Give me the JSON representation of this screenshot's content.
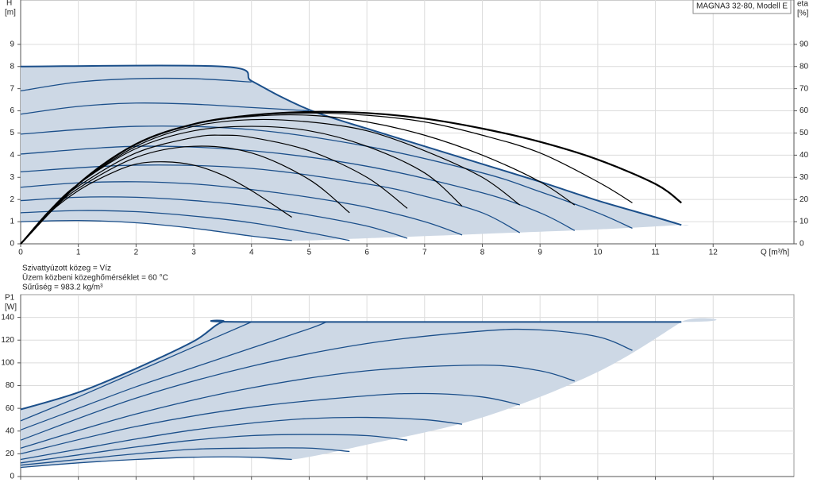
{
  "chart_data": [
    {
      "type": "line",
      "title": "MAGNA3 32-80, Modell E",
      "x_label": "Q [m³/h]",
      "y_label": [
        "H",
        "[m]"
      ],
      "y2_label": [
        "eta",
        "[%]"
      ],
      "notes": [
        "Szivattyúzott közeg = Víz",
        "Üzem közbeni közeghőmérséklet = 60 °C",
        "Sűrűség = 983.2 kg/m³"
      ],
      "xlim": [
        0,
        13.4
      ],
      "ylim": [
        0,
        11
      ],
      "y2lim": [
        0,
        110
      ],
      "xticks": [
        0,
        1,
        2,
        3,
        4,
        5,
        6,
        7,
        8,
        9,
        10,
        11,
        12
      ],
      "yticks": [
        0,
        1,
        2,
        3,
        4,
        5,
        6,
        7,
        8,
        9
      ],
      "y2ticks": [
        0,
        10,
        20,
        30,
        40,
        50,
        60,
        70,
        80,
        90
      ],
      "grid": true,
      "fill": {
        "color": "#cdd8e5",
        "x": [
          11.45,
          10,
          8,
          6,
          4.7,
          4,
          3,
          2,
          1,
          0
        ],
        "values": [
          0.85,
          0.65,
          0.45,
          0.25,
          0.15,
          0.35,
          0.7,
          0.95,
          1.05,
          1.0
        ]
      },
      "series": [
        {
          "color": "#1b4f8a",
          "width": 2,
          "x": [
            0,
            3.5,
            4,
            4.5,
            5,
            5.5,
            6,
            7,
            8,
            9,
            10,
            11,
            11.45
          ],
          "values": [
            8,
            8,
            7.35,
            6.65,
            6.05,
            5.6,
            5.2,
            4.4,
            3.6,
            2.8,
            1.95,
            1.2,
            0.85
          ]
        },
        {
          "color": "#1b4f8a",
          "width": 1.3,
          "x": [
            0,
            1,
            2,
            3,
            4,
            4.7
          ],
          "values": [
            1.0,
            1.05,
            0.95,
            0.7,
            0.35,
            0.15
          ]
        },
        {
          "color": "#1b4f8a",
          "width": 1.3,
          "x": [
            0,
            1,
            2,
            3,
            4,
            5,
            5.7
          ],
          "values": [
            1.4,
            1.5,
            1.45,
            1.25,
            0.95,
            0.5,
            0.15
          ]
        },
        {
          "color": "#1b4f8a",
          "width": 1.3,
          "x": [
            0,
            1,
            2,
            3,
            4,
            5,
            6,
            6.7
          ],
          "values": [
            1.95,
            2.1,
            2.1,
            1.95,
            1.7,
            1.3,
            0.8,
            0.25
          ]
        },
        {
          "color": "#1b4f8a",
          "width": 1.3,
          "x": [
            0,
            1,
            2,
            3,
            4,
            5,
            6,
            7,
            7.65
          ],
          "values": [
            2.55,
            2.75,
            2.8,
            2.7,
            2.45,
            2.1,
            1.65,
            1.0,
            0.4
          ]
        },
        {
          "color": "#1b4f8a",
          "width": 1.3,
          "x": [
            0,
            2,
            4,
            6,
            7,
            8,
            8.65
          ],
          "values": [
            3.25,
            3.55,
            3.4,
            2.7,
            2.15,
            1.4,
            0.5
          ]
        },
        {
          "color": "#1b4f8a",
          "width": 1.3,
          "x": [
            0,
            2,
            4,
            6,
            8,
            9,
            9.6
          ],
          "values": [
            4.05,
            4.4,
            4.2,
            3.5,
            2.3,
            1.4,
            0.6
          ]
        },
        {
          "color": "#1b4f8a",
          "width": 1.3,
          "x": [
            0,
            2,
            4,
            6,
            8,
            9,
            10,
            10.6
          ],
          "values": [
            4.95,
            5.3,
            5.15,
            4.4,
            3.2,
            2.35,
            1.4,
            0.7
          ]
        },
        {
          "color": "#1b4f8a",
          "width": 1.3,
          "x": [
            0,
            1,
            2,
            3,
            4,
            5
          ],
          "values": [
            5.85,
            6.2,
            6.35,
            6.3,
            6.15,
            6.0
          ]
        },
        {
          "color": "#1b4f8a",
          "width": 1.3,
          "x": [
            0,
            1,
            2,
            3,
            4
          ],
          "values": [
            6.9,
            7.3,
            7.45,
            7.45,
            7.3
          ]
        },
        {
          "color": "#000000",
          "width": 1.2,
          "axis": "y2",
          "x": [
            0,
            0.5,
            1,
            1.5,
            2,
            2.5,
            3,
            3.5,
            4,
            4.7
          ],
          "values": [
            0,
            14,
            24,
            31,
            36,
            37,
            35.5,
            31,
            24,
            12
          ]
        },
        {
          "color": "#000000",
          "width": 1.2,
          "axis": "y2",
          "x": [
            0,
            0.5,
            1,
            2,
            3,
            4,
            5,
            5.7
          ],
          "values": [
            0,
            14,
            25,
            39,
            44,
            41,
            29,
            14
          ]
        },
        {
          "color": "#000000",
          "width": 1.2,
          "axis": "y2",
          "x": [
            0,
            0.5,
            1,
            2,
            3,
            3.5,
            4,
            5,
            6,
            6.7
          ],
          "values": [
            0,
            15,
            26,
            41,
            48,
            49,
            48,
            42,
            30,
            16
          ]
        },
        {
          "color": "#000000",
          "width": 1.2,
          "axis": "y2",
          "x": [
            0,
            0.5,
            1,
            2,
            3,
            4,
            5,
            6,
            7,
            7.65
          ],
          "values": [
            0,
            15,
            27,
            43,
            51,
            53,
            51,
            44,
            32,
            17
          ]
        },
        {
          "color": "#000000",
          "width": 1.2,
          "axis": "y2",
          "x": [
            0,
            0.5,
            1,
            2,
            3,
            4,
            5,
            6,
            7,
            8,
            8.65
          ],
          "values": [
            0,
            15,
            27,
            44,
            53,
            56,
            55,
            51,
            42,
            30,
            17.5
          ]
        },
        {
          "color": "#000000",
          "width": 1.2,
          "axis": "y2",
          "x": [
            0,
            0.5,
            1,
            2,
            3,
            4,
            5,
            6,
            7,
            8,
            9,
            9.6
          ],
          "values": [
            0,
            15,
            27,
            45,
            54,
            57.5,
            58,
            55,
            49,
            40,
            28,
            17.5
          ]
        },
        {
          "color": "#000000",
          "width": 1.2,
          "axis": "y2",
          "x": [
            0,
            1,
            2,
            3,
            4,
            5,
            6,
            7,
            8,
            9,
            10,
            10.6
          ],
          "values": [
            0,
            27,
            45,
            54,
            58,
            59,
            58,
            55,
            49,
            41,
            28,
            18.5
          ]
        },
        {
          "color": "#000000",
          "width": 2.2,
          "axis": "y2",
          "x": [
            0,
            1,
            2,
            3,
            4,
            5,
            6,
            7,
            8,
            9,
            10,
            11,
            11.45
          ],
          "values": [
            0,
            27,
            45,
            54,
            58,
            59.5,
            59,
            56.5,
            52,
            46,
            38,
            27,
            18.5
          ]
        }
      ]
    },
    {
      "type": "line",
      "y_label": [
        "P1",
        "[W]"
      ],
      "xlim": [
        0,
        13.4
      ],
      "ylim": [
        0,
        160
      ],
      "xticks": [
        0,
        1,
        2,
        3,
        4,
        5,
        6,
        7,
        8,
        9,
        10,
        11,
        12
      ],
      "yticks": [
        0,
        20,
        40,
        60,
        80,
        100,
        120,
        140
      ],
      "grid": true,
      "fill": {
        "color": "#cdd8e5",
        "x": [
          11.45,
          10,
          8,
          6,
          4.7,
          4,
          3,
          2,
          1,
          0
        ],
        "values": [
          136,
          92,
          52,
          28,
          15,
          17,
          17,
          15,
          12,
          8
        ]
      },
      "series": [
        {
          "color": "#1b4f8a",
          "width": 2,
          "x": [
            0,
            1,
            2,
            3,
            3.5,
            4,
            11.45
          ],
          "values": [
            59,
            74,
            95,
            119,
            136,
            136,
            136
          ]
        },
        {
          "color": "#1b4f8a",
          "width": 1.3,
          "x": [
            0,
            1,
            2,
            3,
            4,
            4.7
          ],
          "values": [
            8,
            12,
            15,
            17,
            17,
            15
          ]
        },
        {
          "color": "#1b4f8a",
          "width": 1.3,
          "x": [
            0,
            1,
            2,
            3,
            4,
            5,
            5.7
          ],
          "values": [
            10,
            15,
            20,
            24,
            25,
            25,
            22
          ]
        },
        {
          "color": "#1b4f8a",
          "width": 1.3,
          "x": [
            0,
            1,
            2,
            3,
            4,
            5,
            6,
            6.7
          ],
          "values": [
            12,
            19,
            26,
            32,
            36,
            37,
            36,
            32
          ]
        },
        {
          "color": "#1b4f8a",
          "width": 1.3,
          "x": [
            0,
            1,
            2,
            3,
            4,
            5,
            6,
            7,
            7.65
          ],
          "values": [
            15,
            24,
            33,
            41,
            47,
            51,
            52,
            50,
            46
          ]
        },
        {
          "color": "#1b4f8a",
          "width": 1.3,
          "x": [
            0,
            2,
            4,
            6,
            7,
            8,
            8.65
          ],
          "values": [
            20,
            44,
            61,
            71,
            73,
            70,
            63
          ]
        },
        {
          "color": "#1b4f8a",
          "width": 1.3,
          "x": [
            0,
            2,
            4,
            6,
            8,
            9,
            9.6
          ],
          "values": [
            25,
            55,
            78,
            93,
            98,
            93,
            84
          ]
        },
        {
          "color": "#1b4f8a",
          "width": 1.3,
          "x": [
            0,
            2,
            4,
            6,
            8,
            9,
            10,
            10.6
          ],
          "values": [
            32,
            69,
            97,
            117,
            128,
            129,
            123,
            111
          ]
        },
        {
          "color": "#1b4f8a",
          "width": 1.3,
          "x": [
            0,
            1,
            2,
            3,
            4,
            5,
            5.3
          ],
          "values": [
            41,
            60,
            79,
            96,
            113,
            130,
            136
          ]
        },
        {
          "color": "#1b4f8a",
          "width": 1.3,
          "x": [
            0,
            1,
            2,
            3,
            4
          ],
          "values": [
            49,
            70,
            92,
            114,
            136
          ]
        }
      ]
    }
  ]
}
